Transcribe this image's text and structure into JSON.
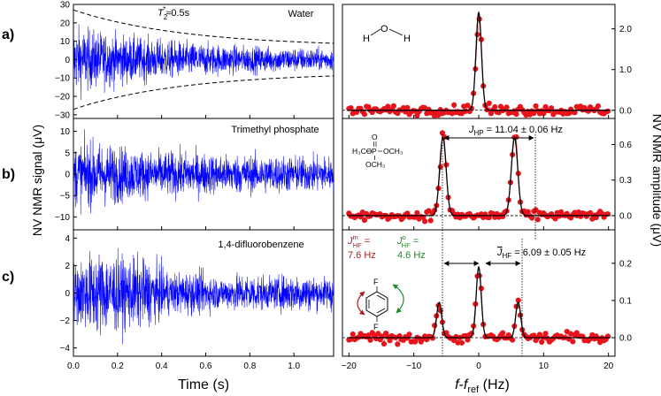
{
  "figure": {
    "left_xlabel": "Time (s)",
    "left_ylabel": "NV NMR signal (μV)",
    "right_ylabel": "NV NMR amplitude (μV)",
    "right_xlabel_f": "f",
    "right_xlabel_sep": "-",
    "right_xlabel_fref": "f",
    "right_xlabel_ref_sub": "ref",
    "right_xlabel_unit": " (Hz)"
  },
  "colors": {
    "time_signal": "#0000ff",
    "spectrum_points": "#e8141c",
    "fit_line": "#000000",
    "meta_label": "#b0181c",
    "ortho_label": "#1f8a2a"
  },
  "panels": [
    {
      "letter": "a)",
      "name": "Water",
      "time_ticks": [
        "30",
        "20",
        "10",
        "0",
        "−10",
        "−20",
        "−30"
      ],
      "spec_ticks": [
        "2.0",
        "1.0",
        "0.0"
      ],
      "t2_label": "T",
      "t2_sub": "2",
      "t2_sup": "*",
      "t2_value": "≈0.5s",
      "molecule_h1": "H",
      "molecule_o": "O",
      "molecule_h2": "H"
    },
    {
      "letter": "b)",
      "name": "Trimethyl phosphate",
      "time_ticks": [
        "10",
        "5",
        "0",
        "−5",
        "−10"
      ],
      "spec_ticks": [
        "0.6",
        "0.3",
        "0.0"
      ],
      "j_label": "J",
      "j_sub": "HP",
      "j_value": " = 11.04 ± 0.06 Hz",
      "mol_o": "O",
      "mol_left": "H₃CO",
      "mol_p": "P",
      "mol_right": "OCH₃",
      "mol_bottom": "OCH₃"
    },
    {
      "letter": "c)",
      "name": "1,4-difluorobenzene",
      "time_ticks": [
        "4",
        "2",
        "0",
        "−2",
        "−4"
      ],
      "spec_ticks": [
        "0.2",
        "0.1",
        "0.0"
      ],
      "jbar_label": "J",
      "jbar_sub": "HF",
      "jbar_value": " = 6.09 ± 0.05 Hz",
      "jm_label": "J",
      "jm_sup": "m",
      "jm_sub": "HF",
      "jm_eq": " =",
      "jm_value": "7.6 Hz",
      "jo_label": "J",
      "jo_sup": "o",
      "jo_sub": "HF",
      "jo_eq": " =",
      "jo_value": "4.6 Hz",
      "f_top": "F",
      "f_bottom": "F"
    }
  ],
  "chart_data": [
    {
      "type": "line",
      "x_axis": "time",
      "xlim": [
        0,
        1.18
      ],
      "x_ticks": [
        "0.0",
        "0.2",
        "0.4",
        "0.6",
        "0.8",
        "1.0"
      ],
      "x_tick_values": [
        0.0,
        0.2,
        0.4,
        0.6,
        0.8,
        1.0
      ],
      "series": [
        {
          "panel": "a)",
          "ylim": [
            -32,
            30
          ],
          "initial_amplitude": 27,
          "envelope_T2_star": 0.5,
          "envelope_floor": 7
        },
        {
          "panel": "b)",
          "ylim": [
            -13,
            13
          ],
          "initial_amplitude": 12,
          "envelope_floor": 6
        },
        {
          "panel": "c)",
          "ylim": [
            -4.6,
            4.6
          ],
          "initial_amplitude": 4,
          "envelope_floor": 1.6
        }
      ]
    },
    {
      "type": "scatter",
      "x_axis": "frequency offset",
      "xlim": [
        -21,
        21
      ],
      "x_ticks": [
        "−20",
        "−10",
        "0",
        "10",
        "20"
      ],
      "x_tick_values": [
        -20,
        -10,
        0,
        10,
        20
      ],
      "series": [
        {
          "panel": "a)",
          "ylim": [
            -0.2,
            2.6
          ],
          "peaks": [
            {
              "f": 0.0,
              "amp": 2.4
            }
          ],
          "line_width": 0.6
        },
        {
          "panel": "b)",
          "ylim": [
            -0.12,
            0.82
          ],
          "peaks": [
            {
              "f": -5.52,
              "amp": 0.66
            },
            {
              "f": 5.52,
              "amp": 0.66
            }
          ],
          "line_width": 0.7,
          "J_HP": 11.04
        },
        {
          "panel": "c)",
          "ylim": [
            -0.05,
            0.29
          ],
          "peaks": [
            {
              "f": -6.09,
              "amp": 0.095
            },
            {
              "f": 0.0,
              "amp": 0.19
            },
            {
              "f": 6.09,
              "amp": 0.095
            }
          ],
          "line_width": 0.55,
          "J_HF_avg": 6.09
        }
      ]
    }
  ]
}
